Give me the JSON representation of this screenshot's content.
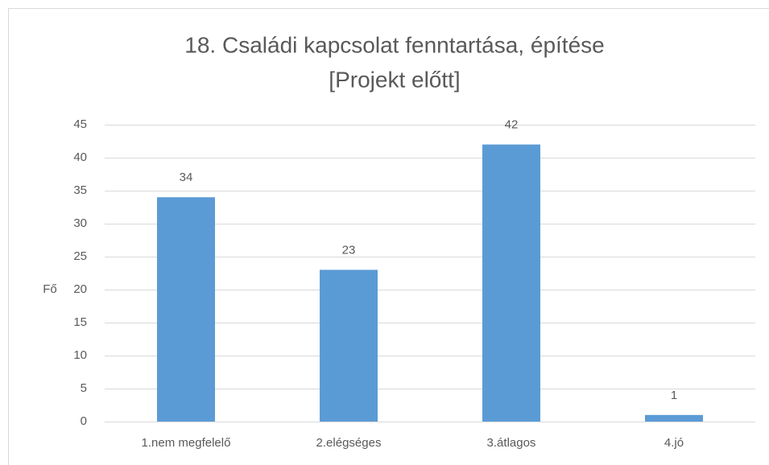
{
  "chart_data": {
    "type": "bar",
    "title": [
      "18. Családi kapcsolat fenntartása, építése",
      "[Projekt előtt]"
    ],
    "ylabel": "Fő",
    "categories": [
      "1.nem megfelelő",
      "2.elégséges",
      "3.átlagos",
      "4.jó"
    ],
    "values": [
      34,
      23,
      42,
      1
    ],
    "color": "#5b9bd5",
    "ylim": [
      0,
      45
    ],
    "yticks": [
      0,
      5,
      10,
      15,
      20,
      25,
      30,
      35,
      40,
      45
    ],
    "grid": true
  }
}
